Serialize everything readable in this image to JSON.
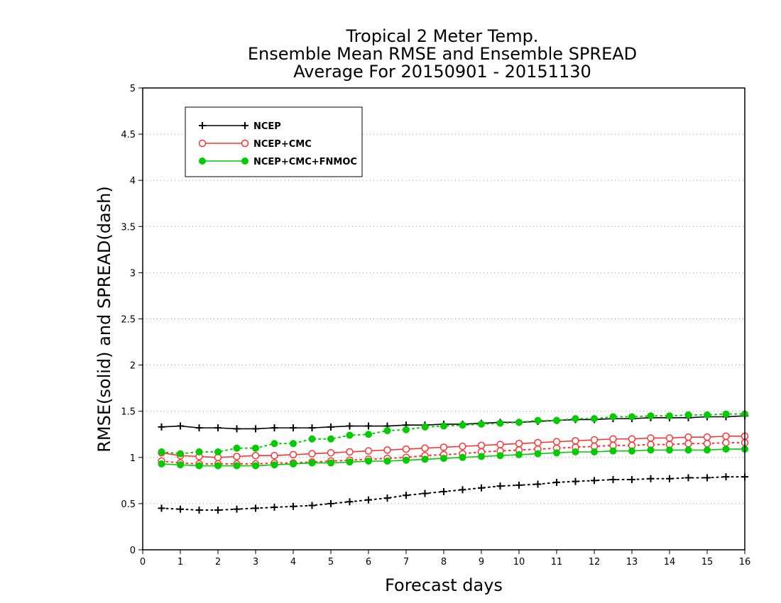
{
  "chart_data": {
    "type": "line",
    "title": [
      "Tropical 2 Meter Temp.",
      "Ensemble Mean RMSE and Ensemble SPREAD",
      "Average For 20150901 - 20151130"
    ],
    "xlabel": "Forecast days",
    "ylabel": "RMSE(solid) and SPREAD(dash)",
    "xlim": [
      0,
      16
    ],
    "ylim": [
      0,
      5
    ],
    "xticks": [
      0,
      1,
      2,
      3,
      4,
      5,
      6,
      7,
      8,
      9,
      10,
      11,
      12,
      13,
      14,
      15,
      16
    ],
    "yticks": [
      0,
      0.5,
      1,
      1.5,
      2,
      2.5,
      3,
      3.5,
      4,
      4.5,
      5
    ],
    "ytick_labels": [
      "0",
      "0.5",
      "1",
      "1.5",
      "2",
      "2.5",
      "3",
      "3.5",
      "4",
      "4.5",
      "5"
    ],
    "grid": "horizontal dotted",
    "legend_position": "top-left",
    "x": [
      0.5,
      1,
      1.5,
      2,
      2.5,
      3,
      3.5,
      4,
      4.5,
      5,
      5.5,
      6,
      6.5,
      7,
      7.5,
      8,
      8.5,
      9,
      9.5,
      10,
      10.5,
      11,
      11.5,
      12,
      12.5,
      13,
      13.5,
      14,
      14.5,
      15,
      15.5,
      16
    ],
    "series": [
      {
        "name": "NCEP",
        "color": "#000000",
        "marker": "plus",
        "rmse": [
          1.33,
          1.34,
          1.32,
          1.32,
          1.31,
          1.31,
          1.32,
          1.32,
          1.32,
          1.33,
          1.34,
          1.34,
          1.34,
          1.35,
          1.35,
          1.36,
          1.36,
          1.37,
          1.38,
          1.38,
          1.39,
          1.4,
          1.41,
          1.41,
          1.42,
          1.42,
          1.43,
          1.43,
          1.43,
          1.44,
          1.44,
          1.45
        ],
        "spread": [
          0.45,
          0.44,
          0.43,
          0.43,
          0.44,
          0.45,
          0.46,
          0.47,
          0.48,
          0.5,
          0.52,
          0.54,
          0.56,
          0.59,
          0.61,
          0.63,
          0.65,
          0.67,
          0.69,
          0.7,
          0.71,
          0.73,
          0.74,
          0.75,
          0.76,
          0.76,
          0.77,
          0.77,
          0.78,
          0.78,
          0.79,
          0.79
        ]
      },
      {
        "name": "NCEP+CMC",
        "color": "#ff3333",
        "marker": "open-circle",
        "rmse": [
          1.05,
          1.02,
          1.01,
          1.0,
          1.01,
          1.02,
          1.02,
          1.03,
          1.04,
          1.05,
          1.06,
          1.07,
          1.08,
          1.09,
          1.1,
          1.11,
          1.12,
          1.13,
          1.14,
          1.15,
          1.16,
          1.17,
          1.18,
          1.19,
          1.2,
          1.2,
          1.21,
          1.21,
          1.22,
          1.22,
          1.23,
          1.23
        ],
        "spread": [
          0.96,
          0.94,
          0.93,
          0.93,
          0.93,
          0.93,
          0.94,
          0.94,
          0.95,
          0.96,
          0.97,
          0.98,
          0.99,
          1.0,
          1.02,
          1.03,
          1.04,
          1.06,
          1.07,
          1.08,
          1.09,
          1.1,
          1.11,
          1.12,
          1.13,
          1.13,
          1.14,
          1.14,
          1.15,
          1.15,
          1.16,
          1.16
        ]
      },
      {
        "name": "NCEP+CMC+FNMOC",
        "color": "#00cc00",
        "marker": "filled-circle",
        "rmse": [
          0.93,
          0.92,
          0.91,
          0.91,
          0.91,
          0.91,
          0.92,
          0.93,
          0.94,
          0.94,
          0.95,
          0.96,
          0.96,
          0.97,
          0.98,
          0.99,
          1.0,
          1.01,
          1.02,
          1.03,
          1.04,
          1.05,
          1.06,
          1.06,
          1.07,
          1.07,
          1.08,
          1.08,
          1.08,
          1.08,
          1.09,
          1.09
        ],
        "spread": [
          1.06,
          1.04,
          1.06,
          1.06,
          1.1,
          1.1,
          1.15,
          1.15,
          1.2,
          1.2,
          1.24,
          1.25,
          1.29,
          1.3,
          1.33,
          1.34,
          1.35,
          1.36,
          1.37,
          1.38,
          1.4,
          1.4,
          1.42,
          1.42,
          1.44,
          1.44,
          1.45,
          1.45,
          1.46,
          1.46,
          1.47,
          1.47
        ]
      }
    ]
  }
}
